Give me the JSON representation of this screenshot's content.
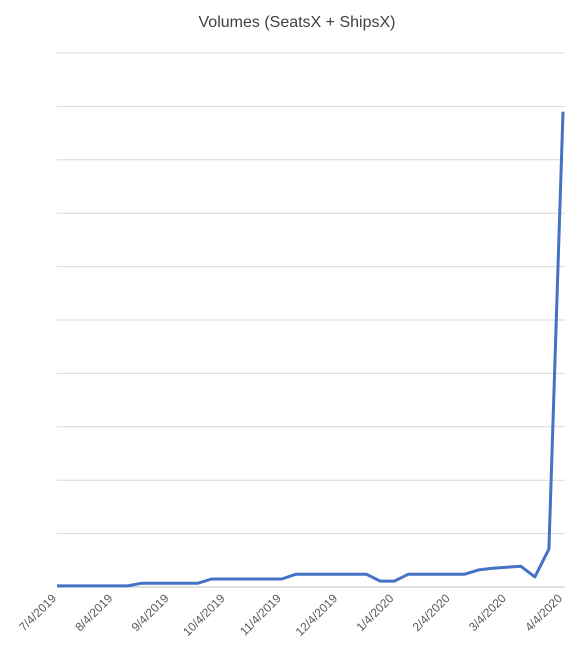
{
  "chart_data": {
    "type": "line",
    "title": "Volumes (SeatsX + ShipsX)",
    "categories": [
      "7/4/2019",
      null,
      null,
      null,
      "8/4/2019",
      null,
      null,
      null,
      "9/4/2019",
      null,
      null,
      null,
      "10/4/2019",
      null,
      null,
      null,
      "11/4/2019",
      null,
      null,
      null,
      "12/4/2019",
      null,
      null,
      null,
      "1/4/2020",
      null,
      null,
      null,
      "2/4/2020",
      null,
      null,
      null,
      "3/4/2020",
      null,
      null,
      null,
      "4/4/2020"
    ],
    "series": [
      {
        "color": "#4472c4",
        "values": [
          0.02,
          0.02,
          0.02,
          0.02,
          0.02,
          0.02,
          0.07,
          0.07,
          0.07,
          0.07,
          0.07,
          0.15,
          0.15,
          0.15,
          0.15,
          0.15,
          0.15,
          0.24,
          0.24,
          0.24,
          0.24,
          0.24,
          0.24,
          0.11,
          0.11,
          0.24,
          0.24,
          0.24,
          0.24,
          0.24,
          0.32,
          0.35,
          0.37,
          0.39,
          0.19,
          0.71,
          8.9
        ]
      }
    ],
    "ylim": [
      0,
      10
    ],
    "yticks": [
      0,
      1,
      2,
      3,
      4,
      5,
      6,
      7,
      8,
      9,
      10
    ],
    "grid": true
  }
}
